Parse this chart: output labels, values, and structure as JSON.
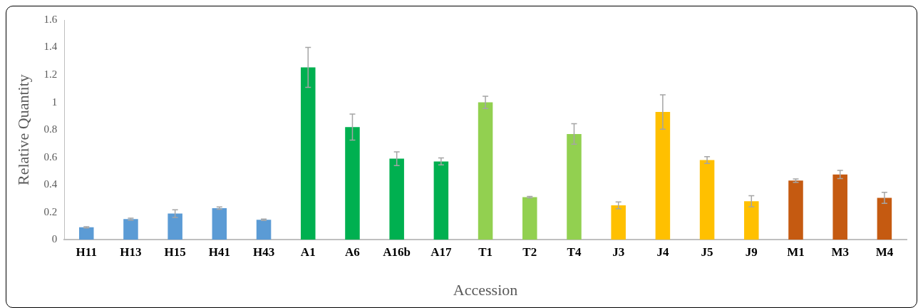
{
  "chart_data": {
    "type": "bar",
    "xlabel": "Accession",
    "ylabel": "Relative Quantity",
    "categories": [
      "H11",
      "H13",
      "H15",
      "H41",
      "H43",
      "A1",
      "A6",
      "A16b",
      "A17",
      "T1",
      "T2",
      "T4",
      "J3",
      "J4",
      "J5",
      "J9",
      "M1",
      "M3",
      "M4"
    ],
    "values": [
      0.09,
      0.15,
      0.19,
      0.23,
      0.145,
      1.255,
      0.82,
      0.59,
      0.57,
      1.0,
      0.31,
      0.77,
      0.25,
      0.93,
      0.58,
      0.28,
      0.43,
      0.475,
      0.305
    ],
    "errors": [
      0.005,
      0.007,
      0.028,
      0.008,
      0.005,
      0.145,
      0.095,
      0.05,
      0.025,
      0.045,
      0.005,
      0.075,
      0.025,
      0.125,
      0.025,
      0.04,
      0.012,
      0.03,
      0.04
    ],
    "colors": [
      "#5b9bd5",
      "#5b9bd5",
      "#5b9bd5",
      "#5b9bd5",
      "#5b9bd5",
      "#00b050",
      "#00b050",
      "#00b050",
      "#00b050",
      "#92d050",
      "#92d050",
      "#92d050",
      "#ffc000",
      "#ffc000",
      "#ffc000",
      "#ffc000",
      "#c55a11",
      "#c55a11",
      "#c55a11"
    ],
    "ylim": [
      0,
      1.6
    ],
    "yticks": [
      0,
      0.2,
      0.4,
      0.6,
      0.8,
      1,
      1.2,
      1.4,
      1.6
    ],
    "grid": false,
    "legend": false
  }
}
